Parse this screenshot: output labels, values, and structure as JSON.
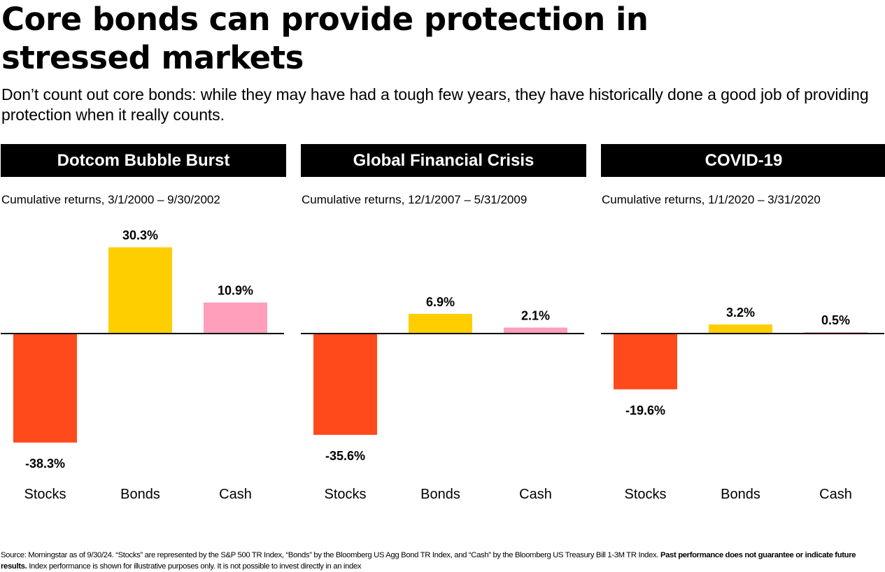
{
  "title": "Core bonds can provide protection in stressed markets",
  "subtitle": "Don’t count out core bonds: while they may have had a tough few years, they have historically done a good job of providing protection when it really counts.",
  "chart_data": [
    {
      "type": "bar",
      "title": "Dotcom Bubble Burst",
      "caption": "Cumulative returns, 3/1/2000 – 9/30/2002",
      "categories": [
        "Stocks",
        "Bonds",
        "Cash"
      ],
      "values": [
        -38.3,
        30.3,
        10.9
      ],
      "value_labels": [
        "-38.3%",
        "30.3%",
        "10.9%"
      ],
      "colors": [
        "#ff4a1c",
        "#ffce00",
        "#ff9fbb"
      ]
    },
    {
      "type": "bar",
      "title": "Global Financial Crisis",
      "caption": "Cumulative returns, 12/1/2007 – 5/31/2009",
      "categories": [
        "Stocks",
        "Bonds",
        "Cash"
      ],
      "values": [
        -35.6,
        6.9,
        2.1
      ],
      "value_labels": [
        "-35.6%",
        "6.9%",
        "2.1%"
      ],
      "colors": [
        "#ff4a1c",
        "#ffce00",
        "#ff9fbb"
      ]
    },
    {
      "type": "bar",
      "title": "COVID-19",
      "caption": "Cumulative returns, 1/1/2020 – 3/31/2020",
      "categories": [
        "Stocks",
        "Bonds",
        "Cash"
      ],
      "values": [
        -19.6,
        3.2,
        0.5
      ],
      "value_labels": [
        "-19.6%",
        "3.2%",
        "0.5%"
      ],
      "colors": [
        "#ff4a1c",
        "#ffce00",
        "#ff9fbb"
      ]
    }
  ],
  "source": {
    "text": "Source: Morningstar as of 9/30/24. “Stocks” are represented by the S&P 500 TR Index, “Bonds” by the Bloomberg US Agg Bond TR Index, and “Cash” by the Bloomberg US Treasury Bill 1-3M TR Index.",
    "disclaimer_bold": "Past performance does not guarantee or indicate future results.",
    "disclaimer_rest": "Index performance is shown for illustrative purposes only. It is not possible to invest directly in an index"
  }
}
